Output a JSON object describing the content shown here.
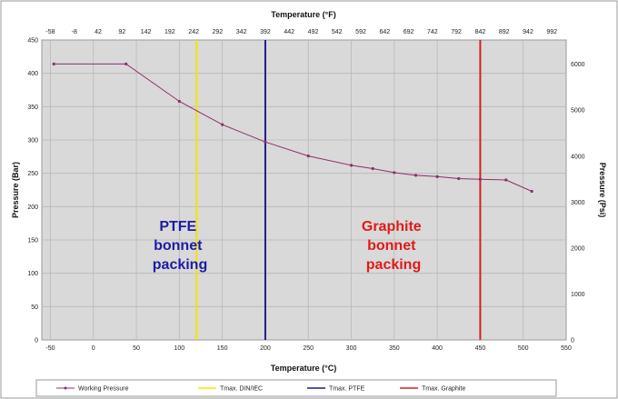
{
  "chart_data": {
    "type": "line",
    "title": "",
    "xlabel": "Temperature (°C)",
    "x2label": "Temperature (°F)",
    "ylabel": "Pressure (Bar)",
    "y2label": "Pressure (Psi)",
    "xlim": [
      -60,
      550
    ],
    "ylim": [
      0,
      450
    ],
    "y2lim": [
      0,
      6527
    ],
    "grid": true,
    "legend_position": "bottom",
    "plot_background": "#d9d9d9",
    "x_ticks": [
      "-50",
      "0",
      "50",
      "100",
      "150",
      "200",
      "250",
      "300",
      "350",
      "400",
      "450",
      "500",
      "550"
    ],
    "x_tick_values": [
      -50,
      0,
      50,
      100,
      150,
      200,
      250,
      300,
      350,
      400,
      450,
      500,
      550
    ],
    "x2_ticks": [
      "-58",
      "-8",
      "42",
      "92",
      "142",
      "192",
      "242",
      "292",
      "342",
      "392",
      "442",
      "492",
      "542",
      "592",
      "642",
      "692",
      "742",
      "792",
      "842",
      "892",
      "942",
      "992"
    ],
    "x2_tick_positions_c": [
      -50,
      -22.2,
      5.6,
      33.3,
      61.1,
      88.9,
      116.7,
      144.4,
      172.2,
      200,
      227.8,
      255.6,
      283.3,
      311.1,
      338.9,
      366.7,
      394.4,
      422.2,
      450,
      477.8,
      505.6,
      533.3
    ],
    "y_ticks": [
      "0",
      "50",
      "100",
      "150",
      "200",
      "250",
      "300",
      "350",
      "400",
      "450"
    ],
    "y_tick_values": [
      0,
      50,
      100,
      150,
      200,
      250,
      300,
      350,
      400,
      450
    ],
    "y2_ticks": [
      "0",
      "1000",
      "2000",
      "3000",
      "4000",
      "5000",
      "6000"
    ],
    "y2_tick_values": [
      0,
      1000,
      2000,
      3000,
      4000,
      5000,
      6000
    ],
    "series": [
      {
        "name": "Working Pressure",
        "color": "#8b2f6e",
        "x": [
          -46,
          38,
          100,
          150,
          200,
          250,
          300,
          325,
          350,
          375,
          400,
          425,
          450,
          480,
          510
        ],
        "y": [
          414,
          414,
          358,
          323,
          297,
          276,
          262,
          257,
          251,
          247,
          245,
          242,
          241,
          240,
          223
        ]
      }
    ],
    "vertical_lines": [
      {
        "name": "Tmax. DIN/IEC",
        "x": 120,
        "color": "#f2e600"
      },
      {
        "name": "Tmax. PTFE",
        "x": 200,
        "color": "#1c1c8c"
      },
      {
        "name": "Tmax. Graphite",
        "x": 450,
        "color": "#d32121"
      }
    ],
    "annotations": [
      {
        "lines": [
          "PTFE",
          "bonnet",
          "packing"
        ],
        "color": "#1c1ca6"
      },
      {
        "lines": [
          "Graphite",
          "bonnet",
          "packing"
        ],
        "color": "#e01a1a"
      }
    ],
    "legend": [
      "Working Pressure",
      "Tmax. DIN/IEC",
      "Tmax. PTFE",
      "Tmax. Graphite"
    ]
  }
}
